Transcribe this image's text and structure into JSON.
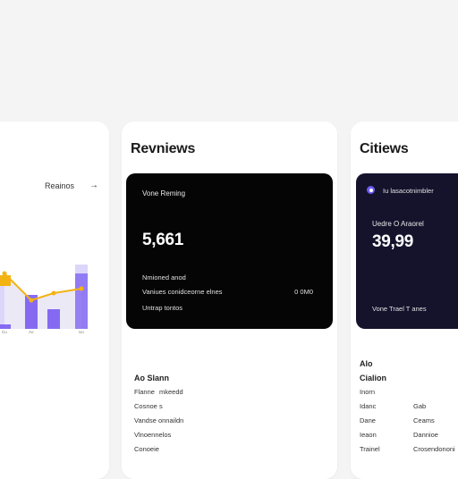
{
  "left_card": {
    "link_label": "Reainos",
    "arrow": "→",
    "chart_data": {
      "type": "bar",
      "categories": [
        "Cu",
        "Ao",
        "",
        "Uo"
      ],
      "series": [
        {
          "values": [
            60,
            0,
            30,
            72
          ]
        },
        {
          "values": [
            5,
            38,
            22,
            62
          ]
        }
      ],
      "line": [
        62,
        32,
        40,
        45
      ],
      "colors": {
        "bar": "#7a5cf0",
        "bar_light": "#ddd6fb",
        "line": "#f3b413"
      }
    }
  },
  "middle_card": {
    "title": "Revniews",
    "panel": {
      "label": "Vone Reming",
      "value": "5,661",
      "sub1": "Nmioned anod",
      "sub2_left": "Vaniues conidceorne elnes",
      "sub2_right": "0 0M0",
      "sub3": "Untrap tontos"
    },
    "list": {
      "heading": "Ao Slann",
      "rows": [
        {
          "a": "Flanne",
          "b": "mkeedd"
        },
        {
          "a": "Cosnoe",
          "b": "s"
        },
        {
          "a": "Vandse onnaildn",
          "b": ""
        },
        {
          "a": "Vlnoennelos",
          "b": ""
        },
        {
          "a": "Conoeie",
          "b": ""
        }
      ]
    }
  },
  "right_card": {
    "title": "Citiews",
    "panel": {
      "badge_text": "Iu lasacotnimbler",
      "label": "Uedre O Araorel",
      "value": "39,99",
      "footer": "Vone Trael T anes"
    },
    "list": {
      "heading1": "Alo",
      "heading2": "Cialion",
      "rows": [
        {
          "a": "Inorn",
          "b": ""
        },
        {
          "a": "Idanc",
          "b": "Gab"
        },
        {
          "a": "Dane",
          "b": "Ceams"
        },
        {
          "a": "Ieaon",
          "b": "Dannioe"
        },
        {
          "a": "Trainel",
          "b": "Crosendononi"
        }
      ]
    }
  }
}
